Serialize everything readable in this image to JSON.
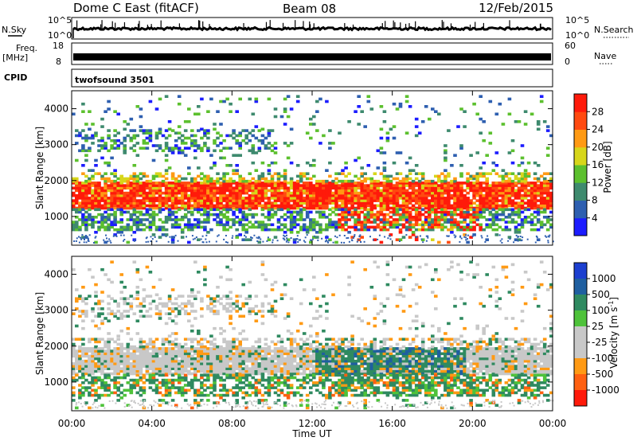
{
  "header": {
    "station": "Dome C East (fitACF)",
    "beam": "Beam 08",
    "date": "12/Feb/2015"
  },
  "strip_panels": {
    "nsky_label": "N.Sky",
    "nsky_tick_high": "10^5",
    "nsky_tick_low": "10^0",
    "nsearch_label": "N.Search",
    "nsearch_tick_high": "10^5",
    "nsearch_tick_low": "10^0",
    "freq_label": "Freq.",
    "freq_unit": "[MHz]",
    "freq_tick_high": "18",
    "freq_tick_low": "8",
    "nave_label": "Nave",
    "nave_tick_high": "60",
    "nave_tick_low": "0",
    "cpid_label": "CPID",
    "cpid_value": "twofsound 3501"
  },
  "chart_data": [
    {
      "type": "heatmap",
      "title": "",
      "parameter": "Power",
      "xlabel": "Time UT",
      "ylabel": "Slant Range [km]",
      "x_ticks": [
        "00:00",
        "04:00",
        "08:00",
        "12:00",
        "16:00",
        "20:00",
        "00:00"
      ],
      "y_ticks": [
        "1000",
        "2000",
        "3000",
        "4000"
      ],
      "ylim": [
        200,
        4500
      ],
      "colorbar_label": "Power [dB]",
      "colorbar_ticks": [
        "4",
        "8",
        "12",
        "16",
        "20",
        "24",
        "28"
      ],
      "colorbar_colors": [
        "#1c1cff",
        "#2e5fb0",
        "#3e8a6e",
        "#5cc02e",
        "#d7d61a",
        "#ff9a14",
        "#ff4a10",
        "#ff1a0a"
      ]
    },
    {
      "type": "heatmap",
      "title": "",
      "parameter": "Velocity",
      "xlabel": "Time UT",
      "ylabel": "Slant Range [km]",
      "x_ticks": [
        "00:00",
        "04:00",
        "08:00",
        "12:00",
        "16:00",
        "20:00",
        "00:00"
      ],
      "y_ticks": [
        "1000",
        "2000",
        "3000",
        "4000"
      ],
      "ylim": [
        200,
        4500
      ],
      "colorbar_label": "Velocity [m s^-1]",
      "colorbar_ticks": [
        "1000",
        "500",
        "100",
        "25",
        "-25",
        "-100",
        "-500",
        "-1000"
      ],
      "colorbar_colors": [
        "#1c3fd0",
        "#1f5fa0",
        "#2f8a60",
        "#4ec23a",
        "#c8c8c8",
        "#c8c8c8",
        "#ff9a14",
        "#ff6010",
        "#ff1a0a"
      ]
    }
  ]
}
